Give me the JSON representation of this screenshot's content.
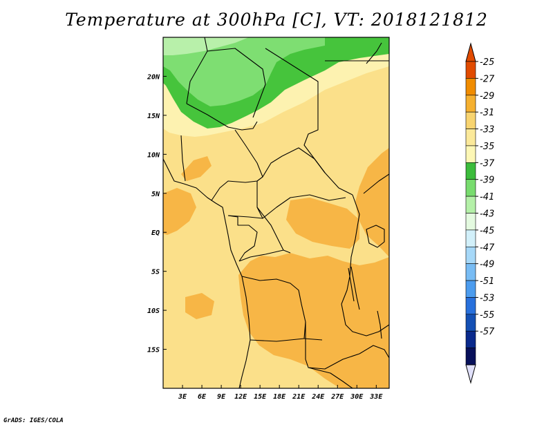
{
  "title": "Temperature at 300hPa [C], VT: 2018121812",
  "footer": "GrADS: IGES/COLA",
  "map": {
    "lon_range": [
      0,
      35
    ],
    "lat_range": [
      -20,
      25
    ],
    "lon_ticks": [
      {
        "value": 3,
        "label": "3E"
      },
      {
        "value": 6,
        "label": "6E"
      },
      {
        "value": 9,
        "label": "9E"
      },
      {
        "value": 12,
        "label": "12E"
      },
      {
        "value": 15,
        "label": "15E"
      },
      {
        "value": 18,
        "label": "18E"
      },
      {
        "value": 21,
        "label": "21E"
      },
      {
        "value": 24,
        "label": "24E"
      },
      {
        "value": 27,
        "label": "27E"
      },
      {
        "value": 30,
        "label": "30E"
      },
      {
        "value": 33,
        "label": "33E"
      }
    ],
    "lat_ticks": [
      {
        "value": 20,
        "label": "20N"
      },
      {
        "value": 15,
        "label": "15N"
      },
      {
        "value": 10,
        "label": "10N"
      },
      {
        "value": 5,
        "label": "5N"
      },
      {
        "value": 0,
        "label": "EQ"
      },
      {
        "value": -5,
        "label": "5S"
      },
      {
        "value": -10,
        "label": "10S"
      },
      {
        "value": -15,
        "label": "15S"
      }
    ]
  },
  "colorbar": {
    "levels": [
      "-25",
      "-27",
      "-29",
      "-31",
      "-33",
      "-35",
      "-37",
      "-39",
      "-41",
      "-43",
      "-45",
      "-47",
      "-49",
      "-51",
      "-53",
      "-55",
      "-57"
    ],
    "colors": [
      "#e14b00",
      "#f08c00",
      "#f5b030",
      "#f8d470",
      "#fbe99a",
      "#fdf7b5",
      "#3cbc3c",
      "#78dc6e",
      "#b4f0a8",
      "#e4fae0",
      "#d2f0fa",
      "#a6d8f8",
      "#78bcf4",
      "#4c9cee",
      "#2870dc",
      "#1450b4",
      "#0a2a8c",
      "#07105a"
    ],
    "top_triangle_color": "#e14b00",
    "bottom_triangle_color": "#e0e0fa"
  },
  "field_colors": {
    "level_m31": "#fbe08a",
    "level_m29": "#f7b646",
    "level_m33": "#fdf2b0",
    "level_m37": "#46c43c",
    "level_m39": "#7ede72",
    "level_m41": "#b8f0aa"
  }
}
